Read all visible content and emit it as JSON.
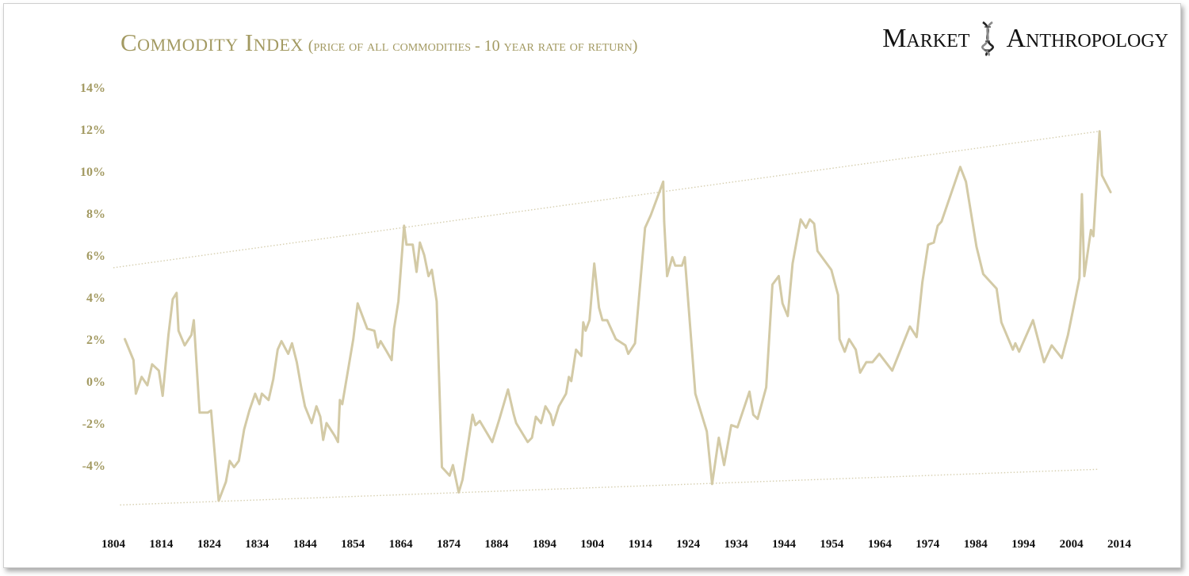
{
  "colors": {
    "line": "#d3caa6",
    "trend": "#d6cfb0",
    "title": "#a39a62",
    "ytick": "#a39a62",
    "xtick": "#111111",
    "brand": "#111111"
  },
  "title": {
    "main": "Commodity Index",
    "sub": "(price of all commodities - 10 year rate of return)"
  },
  "brand": {
    "left": "Market",
    "right": "Anthropology",
    "logo_icon": "dna-helix-icon"
  },
  "chart_data": {
    "type": "line",
    "title": "Commodity Index (price of all commodities - 10 year rate of return)",
    "xlabel": "",
    "ylabel": "",
    "xlim": [
      1804,
      2014
    ],
    "ylim": [
      -6,
      14
    ],
    "grid": false,
    "y_ticks": [
      {
        "value": 14,
        "label": "14%"
      },
      {
        "value": 12,
        "label": "12%"
      },
      {
        "value": 10,
        "label": "10%"
      },
      {
        "value": 8,
        "label": "8%"
      },
      {
        "value": 6,
        "label": "6%"
      },
      {
        "value": 4,
        "label": "4%"
      },
      {
        "value": 2,
        "label": "2%"
      },
      {
        "value": 0,
        "label": "0%"
      },
      {
        "value": -2,
        "label": "-2%"
      },
      {
        "value": -4,
        "label": "-4%"
      }
    ],
    "x_ticks": [
      {
        "value": 1804,
        "label": "1804"
      },
      {
        "value": 1814,
        "label": "1814"
      },
      {
        "value": 1824,
        "label": "1824"
      },
      {
        "value": 1834,
        "label": "1834"
      },
      {
        "value": 1844,
        "label": "1844"
      },
      {
        "value": 1854,
        "label": "1854"
      },
      {
        "value": 1864,
        "label": "1864"
      },
      {
        "value": 1874,
        "label": "1874"
      },
      {
        "value": 1884,
        "label": "1884"
      },
      {
        "value": 1894,
        "label": "1894"
      },
      {
        "value": 1904,
        "label": "1904"
      },
      {
        "value": 1914,
        "label": "1914"
      },
      {
        "value": 1924,
        "label": "1924"
      },
      {
        "value": 1934,
        "label": "1934"
      },
      {
        "value": 1944,
        "label": "1944"
      },
      {
        "value": 1954,
        "label": "1954"
      },
      {
        "value": 1964,
        "label": "1964"
      },
      {
        "value": 1974,
        "label": "1974"
      },
      {
        "value": 1984,
        "label": "1984"
      },
      {
        "value": 1994,
        "label": "1994"
      },
      {
        "value": 2004,
        "label": "2004"
      },
      {
        "value": 2014,
        "label": "2014"
      }
    ],
    "series": [
      {
        "name": "10 year rate of return",
        "points": [
          [
            1806.4,
            2.0
          ],
          [
            1808.2,
            1.0
          ],
          [
            1808.7,
            -0.6
          ],
          [
            1809.9,
            0.2
          ],
          [
            1811.1,
            -0.2
          ],
          [
            1812.1,
            0.8
          ],
          [
            1813.5,
            0.5
          ],
          [
            1814.3,
            -0.7
          ],
          [
            1815.5,
            2.2
          ],
          [
            1816.4,
            3.9
          ],
          [
            1817.2,
            4.2
          ],
          [
            1817.6,
            2.4
          ],
          [
            1818.9,
            1.7
          ],
          [
            1820.3,
            2.2
          ],
          [
            1820.8,
            2.9
          ],
          [
            1822.0,
            -1.5
          ],
          [
            1823.7,
            -1.5
          ],
          [
            1824.4,
            -1.4
          ],
          [
            1826.0,
            -5.7
          ],
          [
            1827.5,
            -4.8
          ],
          [
            1828.3,
            -3.8
          ],
          [
            1829.2,
            -4.1
          ],
          [
            1830.2,
            -3.8
          ],
          [
            1831.3,
            -2.3
          ],
          [
            1832.4,
            -1.4
          ],
          [
            1833.6,
            -0.6
          ],
          [
            1834.5,
            -1.1
          ],
          [
            1835.0,
            -0.6
          ],
          [
            1836.4,
            -0.9
          ],
          [
            1837.4,
            0.1
          ],
          [
            1838.3,
            1.5
          ],
          [
            1839.1,
            1.9
          ],
          [
            1840.5,
            1.3
          ],
          [
            1841.3,
            1.8
          ],
          [
            1842.3,
            0.9
          ],
          [
            1843.3,
            -0.4
          ],
          [
            1844.0,
            -1.2
          ],
          [
            1845.4,
            -2.0
          ],
          [
            1846.4,
            -1.2
          ],
          [
            1847.2,
            -1.7
          ],
          [
            1847.8,
            -2.8
          ],
          [
            1848.5,
            -2.0
          ],
          [
            1850.2,
            -2.6
          ],
          [
            1850.9,
            -2.9
          ],
          [
            1851.3,
            -0.9
          ],
          [
            1851.8,
            -1.1
          ],
          [
            1854.1,
            2.0
          ],
          [
            1855.0,
            3.7
          ],
          [
            1857.0,
            2.5
          ],
          [
            1858.5,
            2.4
          ],
          [
            1859.2,
            1.6
          ],
          [
            1859.8,
            1.9
          ],
          [
            1861.1,
            1.4
          ],
          [
            1862.1,
            1.0
          ],
          [
            1862.6,
            2.5
          ],
          [
            1863.5,
            3.8
          ],
          [
            1864.7,
            7.4
          ],
          [
            1865.2,
            6.5
          ],
          [
            1866.5,
            6.5
          ],
          [
            1867.3,
            5.2
          ],
          [
            1868.0,
            6.6
          ],
          [
            1868.9,
            6.0
          ],
          [
            1869.8,
            5.0
          ],
          [
            1870.5,
            5.3
          ],
          [
            1871.5,
            3.8
          ],
          [
            1872.6,
            -4.1
          ],
          [
            1873.4,
            -4.3
          ],
          [
            1874.2,
            -4.5
          ],
          [
            1874.9,
            -4.0
          ],
          [
            1876.1,
            -5.3
          ],
          [
            1876.9,
            -4.7
          ],
          [
            1879.0,
            -1.6
          ],
          [
            1879.6,
            -2.1
          ],
          [
            1880.5,
            -1.9
          ],
          [
            1883.1,
            -2.9
          ],
          [
            1884.6,
            -1.8
          ],
          [
            1886.4,
            -0.4
          ],
          [
            1887.6,
            -1.6
          ],
          [
            1888.1,
            -2.0
          ],
          [
            1890.5,
            -2.9
          ],
          [
            1891.4,
            -2.7
          ],
          [
            1892.2,
            -1.7
          ],
          [
            1893.3,
            -2.0
          ],
          [
            1894.2,
            -1.2
          ],
          [
            1895.3,
            -1.6
          ],
          [
            1895.8,
            -2.1
          ],
          [
            1897.0,
            -1.2
          ],
          [
            1898.5,
            -0.6
          ],
          [
            1899.1,
            0.2
          ],
          [
            1899.6,
            0.0
          ],
          [
            1900.6,
            1.5
          ],
          [
            1901.7,
            1.2
          ],
          [
            1902.1,
            2.8
          ],
          [
            1902.6,
            2.4
          ],
          [
            1903.4,
            2.9
          ],
          [
            1904.4,
            5.6
          ],
          [
            1905.4,
            3.5
          ],
          [
            1906.1,
            2.9
          ],
          [
            1907.1,
            2.9
          ],
          [
            1908.9,
            2.0
          ],
          [
            1910.9,
            1.7
          ],
          [
            1911.5,
            1.3
          ],
          [
            1912.9,
            1.8
          ],
          [
            1915.0,
            7.3
          ],
          [
            1916.2,
            7.9
          ],
          [
            1918.8,
            9.5
          ],
          [
            1919.0,
            7.6
          ],
          [
            1919.6,
            5.0
          ],
          [
            1920.7,
            5.9
          ],
          [
            1921.3,
            5.5
          ],
          [
            1922.7,
            5.5
          ],
          [
            1923.3,
            5.9
          ],
          [
            1925.5,
            -0.6
          ],
          [
            1927.9,
            -2.4
          ],
          [
            1929.0,
            -4.9
          ],
          [
            1930.4,
            -2.7
          ],
          [
            1931.5,
            -4.0
          ],
          [
            1933.0,
            -2.1
          ],
          [
            1934.3,
            -2.2
          ],
          [
            1936.8,
            -0.5
          ],
          [
            1937.6,
            -1.6
          ],
          [
            1938.5,
            -1.8
          ],
          [
            1940.3,
            -0.3
          ],
          [
            1941.6,
            4.6
          ],
          [
            1942.9,
            5.0
          ],
          [
            1943.7,
            3.7
          ],
          [
            1944.8,
            3.1
          ],
          [
            1945.8,
            5.6
          ],
          [
            1947.5,
            7.7
          ],
          [
            1948.6,
            7.3
          ],
          [
            1949.4,
            7.7
          ],
          [
            1950.3,
            7.5
          ],
          [
            1951.0,
            6.2
          ],
          [
            1953.9,
            5.3
          ],
          [
            1955.3,
            4.1
          ],
          [
            1955.6,
            2.0
          ],
          [
            1956.7,
            1.4
          ],
          [
            1957.6,
            2.0
          ],
          [
            1959.0,
            1.5
          ],
          [
            1959.9,
            0.4
          ],
          [
            1961.2,
            0.9
          ],
          [
            1962.5,
            0.9
          ],
          [
            1963.9,
            1.3
          ],
          [
            1966.6,
            0.5
          ],
          [
            1970.3,
            2.6
          ],
          [
            1971.7,
            2.1
          ],
          [
            1972.9,
            4.7
          ],
          [
            1974.1,
            6.5
          ],
          [
            1975.3,
            6.6
          ],
          [
            1976.1,
            7.4
          ],
          [
            1976.9,
            7.6
          ],
          [
            1980.8,
            10.2
          ],
          [
            1982.0,
            9.5
          ],
          [
            1984.2,
            6.4
          ],
          [
            1985.6,
            5.1
          ],
          [
            1988.4,
            4.4
          ],
          [
            1989.4,
            2.8
          ],
          [
            1991.8,
            1.5
          ],
          [
            1992.3,
            1.8
          ],
          [
            1993.1,
            1.4
          ],
          [
            1996.0,
            2.9
          ],
          [
            1998.3,
            0.9
          ],
          [
            1999.9,
            1.7
          ],
          [
            2002.0,
            1.1
          ],
          [
            2003.3,
            2.2
          ],
          [
            2005.7,
            4.9
          ],
          [
            2006.2,
            8.9
          ],
          [
            2006.7,
            5.0
          ],
          [
            2008.1,
            7.2
          ],
          [
            2008.6,
            6.9
          ],
          [
            2009.9,
            11.9
          ],
          [
            2010.4,
            9.8
          ],
          [
            2012.2,
            9.0
          ]
        ]
      }
    ],
    "trendlines": [
      {
        "name": "upper channel",
        "from": [
          1804,
          5.4
        ],
        "to": [
          2009.9,
          11.9
        ]
      },
      {
        "name": "lower channel",
        "from": [
          1805.4,
          -5.9
        ],
        "to": [
          2009.6,
          -4.2
        ]
      }
    ]
  }
}
